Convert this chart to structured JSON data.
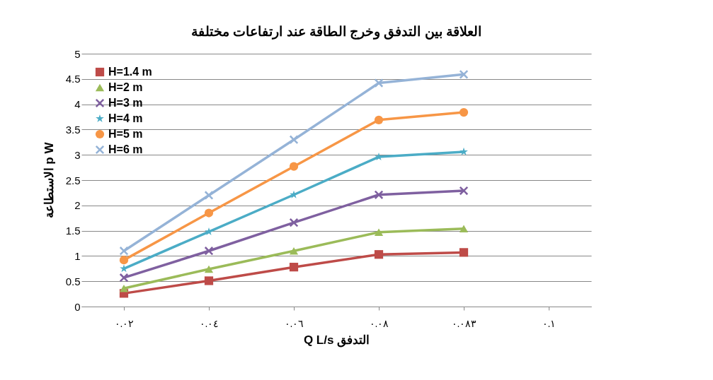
{
  "chart_data": {
    "type": "line",
    "title": "العلاقة بين التدفق وخرج الطاقة عند ارتفاعات مختلفة",
    "xlabel": "Q L/s التدفق",
    "ylabel": "الاستطاعة p W",
    "categories": [
      "٠.٠٢",
      "٠.٠٤",
      "٠.٠٦",
      "٠.٠٨",
      "٠.٠٨٣",
      "٠.١"
    ],
    "series": [
      {
        "name": "H=1.4 m",
        "color": "#be4b48",
        "marker": "square",
        "values": [
          0.26,
          0.51,
          0.78,
          1.03,
          1.07,
          null
        ]
      },
      {
        "name": "H=2 m",
        "color": "#9bbb59",
        "marker": "triangle",
        "values": [
          0.36,
          0.74,
          1.1,
          1.47,
          1.54,
          null
        ]
      },
      {
        "name": "H=3 m",
        "color": "#7f60a0",
        "marker": "cross",
        "values": [
          0.57,
          1.1,
          1.66,
          2.21,
          2.29,
          null
        ]
      },
      {
        "name": "H=4 m",
        "color": "#4bacc6",
        "marker": "star",
        "values": [
          0.75,
          1.48,
          2.21,
          2.96,
          3.06,
          null
        ]
      },
      {
        "name": "H=5 m",
        "color": "#f79646",
        "marker": "circle",
        "values": [
          0.92,
          1.85,
          2.77,
          3.69,
          3.84,
          null
        ]
      },
      {
        "name": "H=6 m",
        "color": "#95b3d7",
        "marker": "cross",
        "values": [
          1.1,
          2.2,
          3.3,
          4.42,
          4.59,
          null
        ]
      }
    ],
    "ylim": [
      0,
      5
    ],
    "yticks": [
      0,
      0.5,
      1,
      1.5,
      2,
      2.5,
      3,
      3.5,
      4,
      4.5,
      5
    ],
    "grid": "y",
    "legend": "top left"
  }
}
